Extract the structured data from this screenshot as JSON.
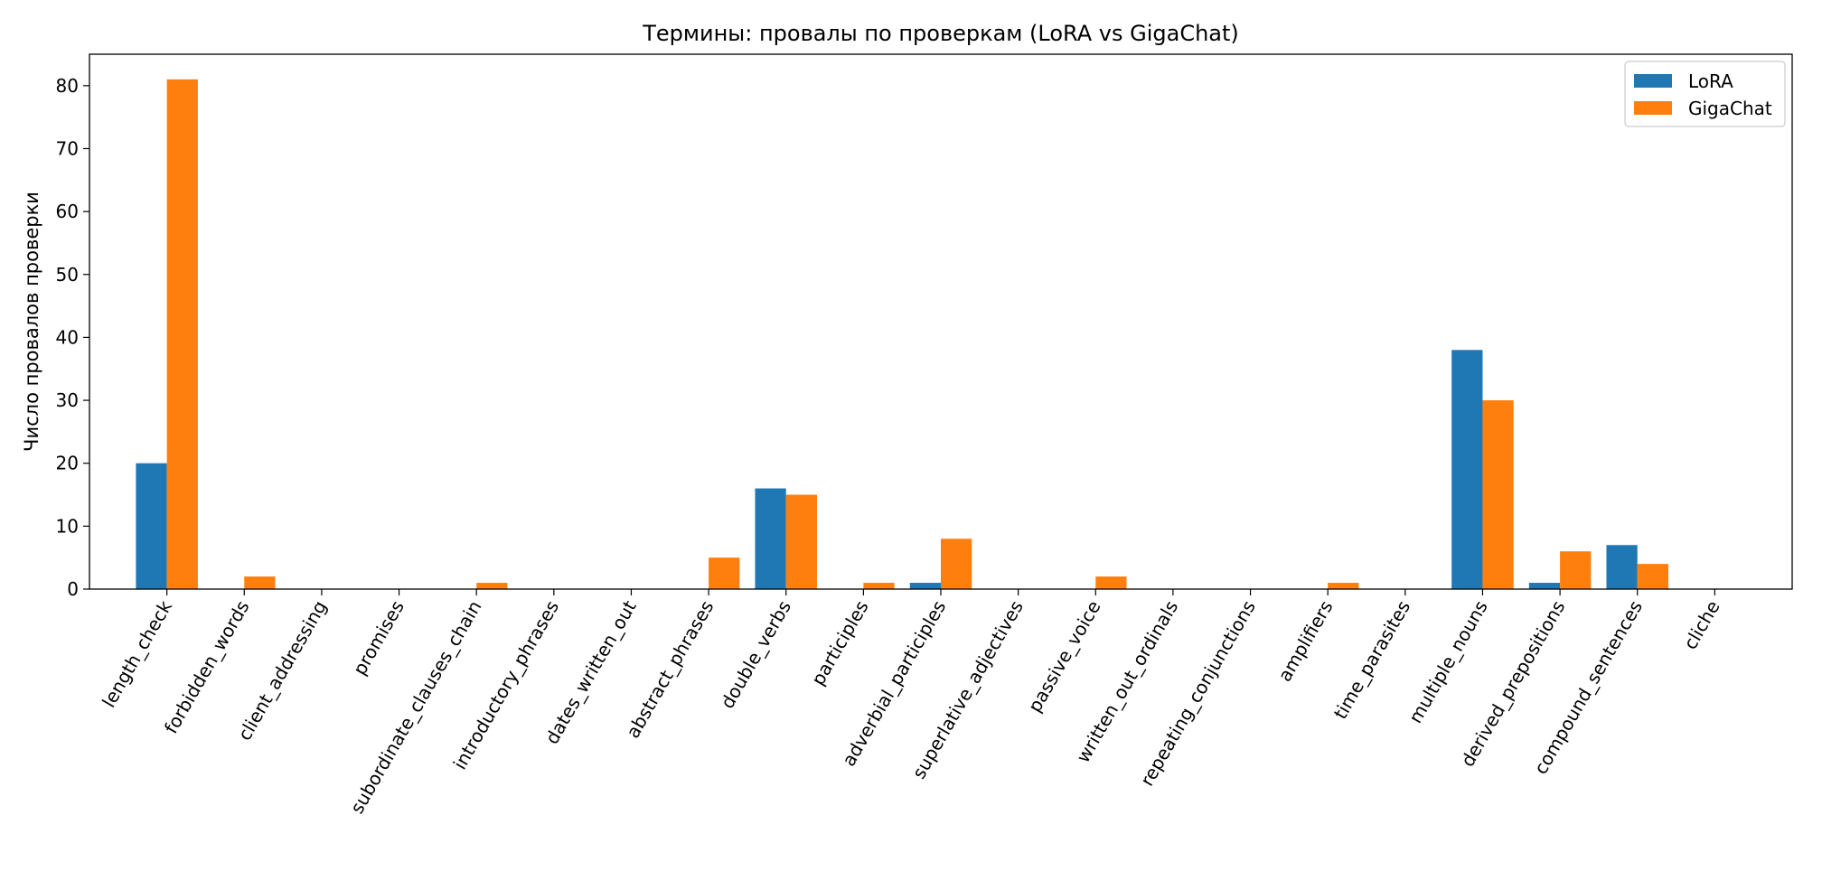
{
  "chart_data": {
    "type": "bar",
    "title": "Термины: провалы по проверкам (LoRA vs GigaChat)",
    "xlabel": "",
    "ylabel": "Число провалов проверки",
    "ylim": [
      0,
      85
    ],
    "yticks": [
      0,
      10,
      20,
      30,
      40,
      50,
      60,
      70,
      80
    ],
    "grid": false,
    "legend_position": "top-right",
    "categories": [
      "length_check",
      "forbidden_words",
      "client_addressing",
      "promises",
      "subordinate_clauses_chain",
      "introductory_phrases",
      "dates_written_out",
      "abstract_phrases",
      "double_verbs",
      "participles",
      "adverbial_participles",
      "superlative_adjectives",
      "passive_voice",
      "written_out_ordinals",
      "repeating_conjunctions",
      "amplifiers",
      "time_parasites",
      "multiple_nouns",
      "derived_prepositions",
      "compound_sentences",
      "cliche"
    ],
    "series": [
      {
        "name": "LoRA",
        "color": "#1f77b4",
        "values": [
          20,
          0,
          0,
          0,
          0,
          0,
          0,
          0,
          16,
          0,
          1,
          0,
          0,
          0,
          0,
          0,
          0,
          38,
          1,
          7,
          0
        ]
      },
      {
        "name": "GigaChat",
        "color": "#ff7f0e",
        "values": [
          81,
          2,
          0,
          0,
          1,
          0,
          0,
          5,
          15,
          1,
          8,
          0,
          2,
          0,
          0,
          1,
          0,
          30,
          6,
          4,
          0
        ]
      }
    ]
  }
}
